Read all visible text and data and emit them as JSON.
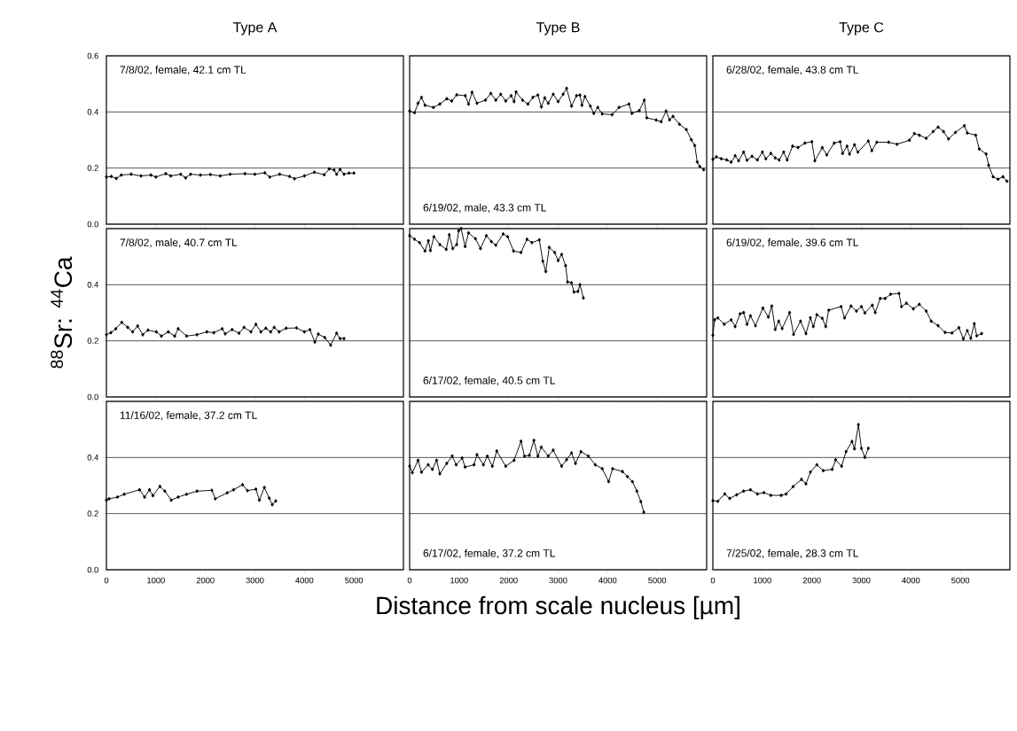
{
  "chart_data": [
    {
      "type": "line",
      "title": "Type A",
      "annotations": [
        "7/8/02, female, 42.1 cm TL"
      ],
      "color": "#000000",
      "marker": "diamond",
      "line_style": "solid",
      "grid": "y",
      "tick_labels": "y",
      "xlim": [
        0,
        6000
      ],
      "ylim": [
        0,
        0.6
      ],
      "xticks": [
        0,
        1000,
        2000,
        3000,
        4000,
        5000
      ],
      "yticks": [
        {
          "value": 0,
          "label": "0.0"
        },
        {
          "value": 0.2,
          "label": "0.2"
        },
        {
          "value": 0.4,
          "label": "0.4"
        },
        {
          "value": 0.6,
          "label": "0.6"
        }
      ],
      "x": [
        0,
        100,
        200,
        300,
        500,
        700,
        900,
        1000,
        1200,
        1300,
        1500,
        1600,
        1700,
        1900,
        2100,
        2300,
        2500,
        2800,
        3000,
        3200,
        3300,
        3500,
        3700,
        3800,
        4000,
        4200,
        4400,
        4500,
        4600,
        4650,
        4720,
        4800,
        4900,
        5000
      ],
      "values": [
        0.168,
        0.17,
        0.163,
        0.175,
        0.178,
        0.172,
        0.175,
        0.168,
        0.18,
        0.172,
        0.178,
        0.165,
        0.178,
        0.175,
        0.177,
        0.172,
        0.178,
        0.18,
        0.178,
        0.183,
        0.168,
        0.178,
        0.17,
        0.162,
        0.172,
        0.185,
        0.176,
        0.197,
        0.193,
        0.178,
        0.195,
        0.178,
        0.182,
        0.182
      ]
    },
    {
      "type": "line",
      "title": "Type B",
      "annotations": [
        "6/19/02, male, 43.3 cm TL"
      ],
      "color": "#000000",
      "marker": "diamond",
      "line_style": "solid",
      "grid": "y",
      "tick_labels": false,
      "xlim": [
        0,
        6000
      ],
      "ylim": [
        0,
        0.6
      ],
      "xticks": [
        0,
        1000,
        2000,
        3000,
        4000,
        5000
      ],
      "yticks": [
        0,
        0.2,
        0.4,
        0.6
      ],
      "x": [
        0,
        100,
        170,
        240,
        310,
        480,
        610,
        750,
        850,
        950,
        1125,
        1190,
        1260,
        1360,
        1530,
        1640,
        1740,
        1840,
        1940,
        2050,
        2110,
        2150,
        2280,
        2390,
        2490,
        2590,
        2660,
        2730,
        2800,
        2900,
        3000,
        3100,
        3170,
        3270,
        3370,
        3440,
        3480,
        3540,
        3650,
        3720,
        3800,
        3890,
        4090,
        4230,
        4430,
        4490,
        4640,
        4740,
        4790,
        4980,
        5080,
        5180,
        5250,
        5320,
        5450,
        5590,
        5690,
        5760,
        5810,
        5860,
        5940
      ],
      "values": [
        0.403,
        0.397,
        0.431,
        0.452,
        0.424,
        0.416,
        0.428,
        0.447,
        0.439,
        0.461,
        0.458,
        0.428,
        0.47,
        0.431,
        0.442,
        0.466,
        0.442,
        0.463,
        0.439,
        0.458,
        0.437,
        0.471,
        0.442,
        0.428,
        0.452,
        0.46,
        0.418,
        0.45,
        0.431,
        0.463,
        0.437,
        0.463,
        0.484,
        0.421,
        0.458,
        0.46,
        0.424,
        0.455,
        0.421,
        0.395,
        0.416,
        0.393,
        0.39,
        0.416,
        0.428,
        0.395,
        0.405,
        0.442,
        0.379,
        0.371,
        0.365,
        0.403,
        0.372,
        0.384,
        0.356,
        0.337,
        0.301,
        0.28,
        0.222,
        0.206,
        0.194
      ]
    },
    {
      "type": "line",
      "title": "Type C",
      "annotations": [
        "6/28/02, female, 43.8 cm TL"
      ],
      "color": "#000000",
      "marker": "diamond",
      "line_style": "solid",
      "grid": "y",
      "tick_labels": false,
      "xlim": [
        0,
        6000
      ],
      "ylim": [
        0,
        0.6
      ],
      "xticks": [
        0,
        1000,
        2000,
        3000,
        4000,
        5000
      ],
      "yticks": [
        0,
        0.2,
        0.4,
        0.6
      ],
      "x": [
        0,
        70,
        170,
        280,
        370,
        450,
        520,
        620,
        690,
        790,
        900,
        1000,
        1070,
        1170,
        1260,
        1340,
        1430,
        1500,
        1610,
        1720,
        1860,
        2000,
        2060,
        2210,
        2300,
        2450,
        2570,
        2620,
        2710,
        2760,
        2860,
        2930,
        3140,
        3210,
        3310,
        3550,
        3720,
        3970,
        4070,
        4170,
        4310,
        4450,
        4550,
        4660,
        4760,
        4900,
        5080,
        5140,
        5310,
        5380,
        5520,
        5570,
        5660,
        5760,
        5860,
        5940
      ],
      "values": [
        0.231,
        0.24,
        0.233,
        0.229,
        0.221,
        0.244,
        0.226,
        0.257,
        0.228,
        0.242,
        0.229,
        0.257,
        0.233,
        0.252,
        0.236,
        0.229,
        0.257,
        0.229,
        0.278,
        0.273,
        0.289,
        0.294,
        0.226,
        0.273,
        0.247,
        0.289,
        0.294,
        0.252,
        0.278,
        0.25,
        0.283,
        0.257,
        0.296,
        0.262,
        0.292,
        0.292,
        0.285,
        0.299,
        0.323,
        0.317,
        0.306,
        0.33,
        0.346,
        0.33,
        0.304,
        0.327,
        0.351,
        0.325,
        0.317,
        0.268,
        0.25,
        0.21,
        0.169,
        0.16,
        0.169,
        0.153
      ]
    },
    {
      "type": "line",
      "ylabel": "$^{88}$Sr: $^{44}$Ca",
      "annotations": [
        "7/8/02, male, 40.7 cm TL"
      ],
      "color": "#000000",
      "marker": "diamond",
      "line_style": "solid",
      "grid": "y",
      "tick_labels": "y",
      "xlim": [
        0,
        6000
      ],
      "ylim": [
        0,
        0.6
      ],
      "xticks": [
        0,
        1000,
        2000,
        3000,
        4000,
        5000
      ],
      "yticks": [
        {
          "value": 0,
          "label": "0.0"
        },
        {
          "value": 0.2,
          "label": "0.2"
        },
        {
          "value": 0.4,
          "label": "0.4"
        },
        {
          "value": 0.6,
          "label": null
        }
      ],
      "x": [
        0,
        90,
        190,
        310,
        430,
        530,
        630,
        735,
        840,
        1010,
        1110,
        1250,
        1380,
        1450,
        1620,
        1830,
        2030,
        2170,
        2340,
        2400,
        2540,
        2680,
        2780,
        2920,
        3020,
        3120,
        3220,
        3320,
        3390,
        3490,
        3630,
        3840,
        4000,
        4110,
        4210,
        4280,
        4410,
        4530,
        4650,
        4720,
        4800
      ],
      "values": [
        0.222,
        0.229,
        0.243,
        0.266,
        0.248,
        0.232,
        0.253,
        0.222,
        0.238,
        0.232,
        0.217,
        0.232,
        0.217,
        0.243,
        0.217,
        0.222,
        0.232,
        0.229,
        0.243,
        0.225,
        0.24,
        0.227,
        0.248,
        0.232,
        0.259,
        0.232,
        0.245,
        0.232,
        0.248,
        0.232,
        0.245,
        0.246,
        0.232,
        0.24,
        0.196,
        0.224,
        0.212,
        0.185,
        0.227,
        0.208,
        0.208
      ]
    },
    {
      "type": "line",
      "annotations": [
        "6/17/02, female, 40.5 cm TL"
      ],
      "color": "#000000",
      "marker": "diamond",
      "line_style": "solid",
      "grid": "y",
      "tick_labels": false,
      "xlim": [
        0,
        6000
      ],
      "ylim": [
        0,
        0.6
      ],
      "xticks": [
        0,
        1000,
        2000,
        3000,
        4000,
        5000
      ],
      "yticks": [
        0,
        0.2,
        0.4,
        0.6
      ],
      "x": [
        0,
        100,
        200,
        310,
        380,
        420,
        490,
        610,
        740,
        800,
        870,
        950,
        990,
        1040,
        1120,
        1190,
        1330,
        1430,
        1550,
        1650,
        1740,
        1890,
        1980,
        2100,
        2250,
        2370,
        2470,
        2620,
        2690,
        2750,
        2820,
        2930,
        3000,
        3070,
        3150,
        3190,
        3270,
        3320,
        3400,
        3440,
        3510
      ],
      "values": [
        0.575,
        0.562,
        0.55,
        0.52,
        0.557,
        0.522,
        0.571,
        0.543,
        0.526,
        0.578,
        0.529,
        0.543,
        0.592,
        0.6,
        0.536,
        0.585,
        0.564,
        0.529,
        0.575,
        0.554,
        0.541,
        0.581,
        0.571,
        0.52,
        0.515,
        0.562,
        0.55,
        0.56,
        0.484,
        0.447,
        0.533,
        0.515,
        0.486,
        0.508,
        0.468,
        0.41,
        0.407,
        0.374,
        0.376,
        0.4,
        0.353
      ]
    },
    {
      "type": "line",
      "annotations": [
        "6/19/02, female, 39.6 cm TL"
      ],
      "color": "#000000",
      "marker": "diamond",
      "line_style": "solid",
      "grid": "y",
      "tick_labels": false,
      "xlim": [
        0,
        6000
      ],
      "ylim": [
        0,
        0.6
      ],
      "xticks": [
        0,
        1000,
        2000,
        3000,
        4000,
        5000
      ],
      "yticks": [
        0,
        0.2,
        0.4,
        0.6
      ],
      "x": [
        0,
        35,
        100,
        230,
        370,
        450,
        550,
        620,
        690,
        760,
        860,
        1010,
        1120,
        1190,
        1260,
        1330,
        1400,
        1550,
        1630,
        1770,
        1880,
        1970,
        2030,
        2100,
        2210,
        2280,
        2340,
        2590,
        2660,
        2790,
        2900,
        3000,
        3070,
        3220,
        3280,
        3380,
        3480,
        3590,
        3760,
        3810,
        3910,
        4050,
        4170,
        4310,
        4410,
        4550,
        4690,
        4830,
        4970,
        5060,
        5140,
        5210,
        5280,
        5330,
        5430
      ],
      "values": [
        0.22,
        0.275,
        0.282,
        0.259,
        0.275,
        0.251,
        0.296,
        0.301,
        0.259,
        0.289,
        0.254,
        0.317,
        0.285,
        0.324,
        0.241,
        0.27,
        0.244,
        0.301,
        0.223,
        0.27,
        0.226,
        0.282,
        0.251,
        0.293,
        0.28,
        0.251,
        0.309,
        0.322,
        0.282,
        0.324,
        0.306,
        0.322,
        0.299,
        0.327,
        0.301,
        0.351,
        0.351,
        0.366,
        0.369,
        0.322,
        0.334,
        0.314,
        0.33,
        0.306,
        0.27,
        0.254,
        0.23,
        0.228,
        0.247,
        0.207,
        0.236,
        0.209,
        0.261,
        0.218,
        0.226
      ]
    },
    {
      "type": "line",
      "annotations": [
        "11/16/02, female, 37.2 cm TL"
      ],
      "color": "#000000",
      "marker": "diamond",
      "line_style": "solid",
      "grid": "y",
      "xlim": [
        0,
        6000
      ],
      "ylim": [
        0,
        0.6
      ],
      "xticks": [
        0,
        1000,
        2000,
        3000,
        4000,
        5000
      ],
      "yticks": [
        {
          "value": 0,
          "label": "0.0"
        },
        {
          "value": 0.2,
          "label": "0.2"
        },
        {
          "value": 0.4,
          "label": "0.4"
        },
        {
          "value": 0.6,
          "label": null
        }
      ],
      "x": [
        0,
        55,
        225,
        360,
        670,
        770,
        870,
        940,
        1080,
        1180,
        1310,
        1450,
        1620,
        1830,
        2130,
        2200,
        2440,
        2570,
        2750,
        2850,
        3020,
        3090,
        3190,
        3290,
        3350,
        3420
      ],
      "values": [
        0.248,
        0.253,
        0.259,
        0.269,
        0.285,
        0.259,
        0.285,
        0.264,
        0.297,
        0.28,
        0.248,
        0.259,
        0.269,
        0.28,
        0.283,
        0.253,
        0.274,
        0.285,
        0.303,
        0.282,
        0.287,
        0.248,
        0.293,
        0.255,
        0.232,
        0.245
      ]
    },
    {
      "type": "line",
      "xlabel": "Distance from scale nucleus [µm]",
      "annotations": [
        "6/17/02, female, 37.2 cm TL"
      ],
      "color": "#000000",
      "marker": "diamond",
      "line_style": "solid",
      "grid": "y",
      "tick_labels": "x",
      "xlim": [
        0,
        6000
      ],
      "ylim": [
        0,
        0.6
      ],
      "xticks": [
        0,
        1000,
        2000,
        3000,
        4000,
        5000
      ],
      "yticks": [
        0,
        0.2,
        0.4,
        0.6
      ],
      "x": [
        0,
        55,
        170,
        240,
        375,
        460,
        545,
        610,
        750,
        860,
        940,
        1060,
        1120,
        1300,
        1360,
        1490,
        1570,
        1670,
        1760,
        1940,
        2110,
        2250,
        2320,
        2420,
        2510,
        2590,
        2660,
        2800,
        2900,
        3070,
        3170,
        3270,
        3350,
        3460,
        3610,
        3750,
        3890,
        4020,
        4100,
        4300,
        4400,
        4500,
        4590,
        4670,
        4730
      ],
      "values": [
        0.369,
        0.346,
        0.39,
        0.348,
        0.374,
        0.358,
        0.39,
        0.342,
        0.379,
        0.405,
        0.374,
        0.398,
        0.366,
        0.374,
        0.41,
        0.374,
        0.405,
        0.369,
        0.423,
        0.369,
        0.39,
        0.458,
        0.405,
        0.408,
        0.461,
        0.405,
        0.437,
        0.405,
        0.426,
        0.369,
        0.392,
        0.416,
        0.379,
        0.421,
        0.405,
        0.374,
        0.36,
        0.314,
        0.36,
        0.35,
        0.332,
        0.314,
        0.28,
        0.243,
        0.205
      ]
    },
    {
      "type": "line",
      "annotations": [
        "7/25/02, female, 28.3 cm TL"
      ],
      "color": "#000000",
      "marker": "diamond",
      "line_style": "solid",
      "grid": "y",
      "tick_labels": "x",
      "xlim": [
        0,
        6000
      ],
      "ylim": [
        0,
        0.6
      ],
      "xticks": [
        0,
        1000,
        2000,
        3000,
        4000,
        5000
      ],
      "yticks": [
        0,
        0.2,
        0.4,
        0.6
      ],
      "x": [
        0,
        100,
        240,
        340,
        480,
        620,
        760,
        900,
        1030,
        1170,
        1380,
        1480,
        1620,
        1790,
        1880,
        1970,
        2100,
        2230,
        2410,
        2480,
        2600,
        2690,
        2810,
        2860,
        2940,
        3000,
        3070,
        3140
      ],
      "values": [
        0.246,
        0.244,
        0.27,
        0.254,
        0.267,
        0.28,
        0.285,
        0.27,
        0.275,
        0.265,
        0.265,
        0.27,
        0.296,
        0.322,
        0.306,
        0.348,
        0.374,
        0.353,
        0.358,
        0.392,
        0.369,
        0.421,
        0.457,
        0.431,
        0.517,
        0.433,
        0.4,
        0.433
      ]
    }
  ]
}
